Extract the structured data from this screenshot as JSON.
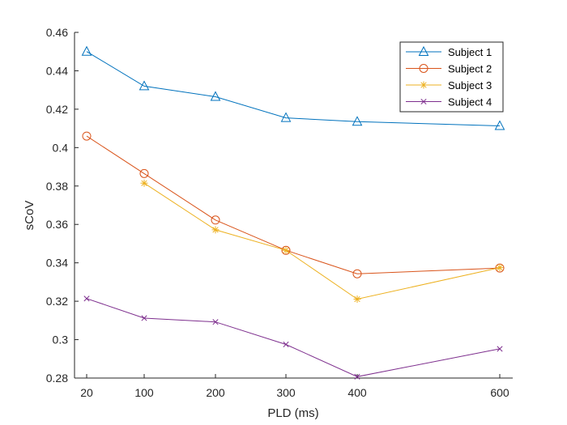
{
  "chart_data": {
    "type": "line",
    "title": "",
    "xlabel": "PLD (ms)",
    "ylabel": "sCoV",
    "x_ticks": [
      20,
      100,
      200,
      300,
      400,
      600
    ],
    "x_tick_labels": [
      "20",
      "100",
      "200",
      "300",
      "400",
      "600"
    ],
    "xlim": [
      0,
      600
    ],
    "ylim": [
      0.28,
      0.46
    ],
    "y_ticks": [
      0.28,
      0.3,
      0.32,
      0.34,
      0.36,
      0.38,
      0.4,
      0.42,
      0.44,
      0.46
    ],
    "y_tick_labels": [
      "0.28",
      "0.3",
      "0.32",
      "0.34",
      "0.36",
      "0.38",
      "0.4",
      "0.42",
      "0.44",
      "0.46"
    ],
    "grid": false,
    "legend_position": "top-right",
    "series": [
      {
        "name": "Subject 1",
        "color": "#0072BD",
        "marker": "triangle",
        "x": [
          20,
          100,
          200,
          300,
          400,
          600
        ],
        "y": [
          0.45,
          0.432,
          0.4265,
          0.4155,
          0.4135,
          0.4113
        ]
      },
      {
        "name": "Subject 2",
        "color": "#D95319",
        "marker": "circle",
        "x": [
          20,
          100,
          200,
          300,
          400,
          600
        ],
        "y": [
          0.406,
          0.3865,
          0.3623,
          0.3465,
          0.3343,
          0.3373
        ]
      },
      {
        "name": "Subject 3",
        "color": "#EDB120",
        "marker": "star",
        "x": [
          100,
          200,
          300,
          400,
          600
        ],
        "y": [
          0.3815,
          0.3572,
          0.3465,
          0.3211,
          0.3375
        ]
      },
      {
        "name": "Subject 4",
        "color": "#7E2F8E",
        "marker": "cross",
        "x": [
          20,
          100,
          200,
          300,
          400,
          600
        ],
        "y": [
          0.3214,
          0.3112,
          0.3092,
          0.2975,
          0.2807,
          0.2952
        ]
      }
    ]
  }
}
